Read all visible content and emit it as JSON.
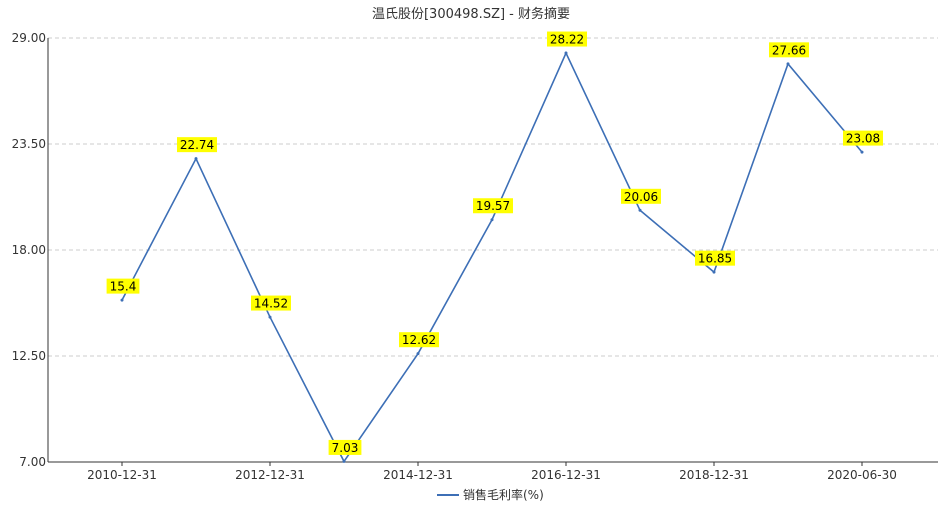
{
  "chart_data": {
    "type": "line",
    "title": "温氏股份[300498.SZ] - 财务摘要",
    "xlabel": "",
    "ylabel": "",
    "x": [
      "2010-12-31",
      "2011-12-31",
      "2012-12-31",
      "2013-12-31",
      "2014-12-31",
      "2015-12-31",
      "2016-12-31",
      "2017-12-31",
      "2018-12-31",
      "2019-12-31",
      "2020-06-30"
    ],
    "x_tick_labels": [
      "2010-12-31",
      "2012-12-31",
      "2014-12-31",
      "2016-12-31",
      "2018-12-31",
      "2020-06-30"
    ],
    "series": [
      {
        "name": "销售毛利率(%)",
        "values": [
          15.4,
          22.74,
          14.52,
          7.03,
          12.62,
          19.57,
          28.22,
          20.06,
          16.85,
          27.66,
          23.08
        ],
        "labels": [
          "15.4",
          "22.74",
          "14.52",
          "7.03",
          "12.62",
          "19.57",
          "28.22",
          "20.06",
          "16.85",
          "27.66",
          "23.08"
        ]
      }
    ],
    "ylim": [
      7.0,
      29.0
    ],
    "y_ticks": [
      "7.00",
      "12.50",
      "18.00",
      "23.50",
      "29.00"
    ],
    "grid": true,
    "legend_position": "bottom-center",
    "colors": {
      "line": "#3d6fb6",
      "label_bg": "#ffff00",
      "grid": "#cccccc"
    }
  }
}
